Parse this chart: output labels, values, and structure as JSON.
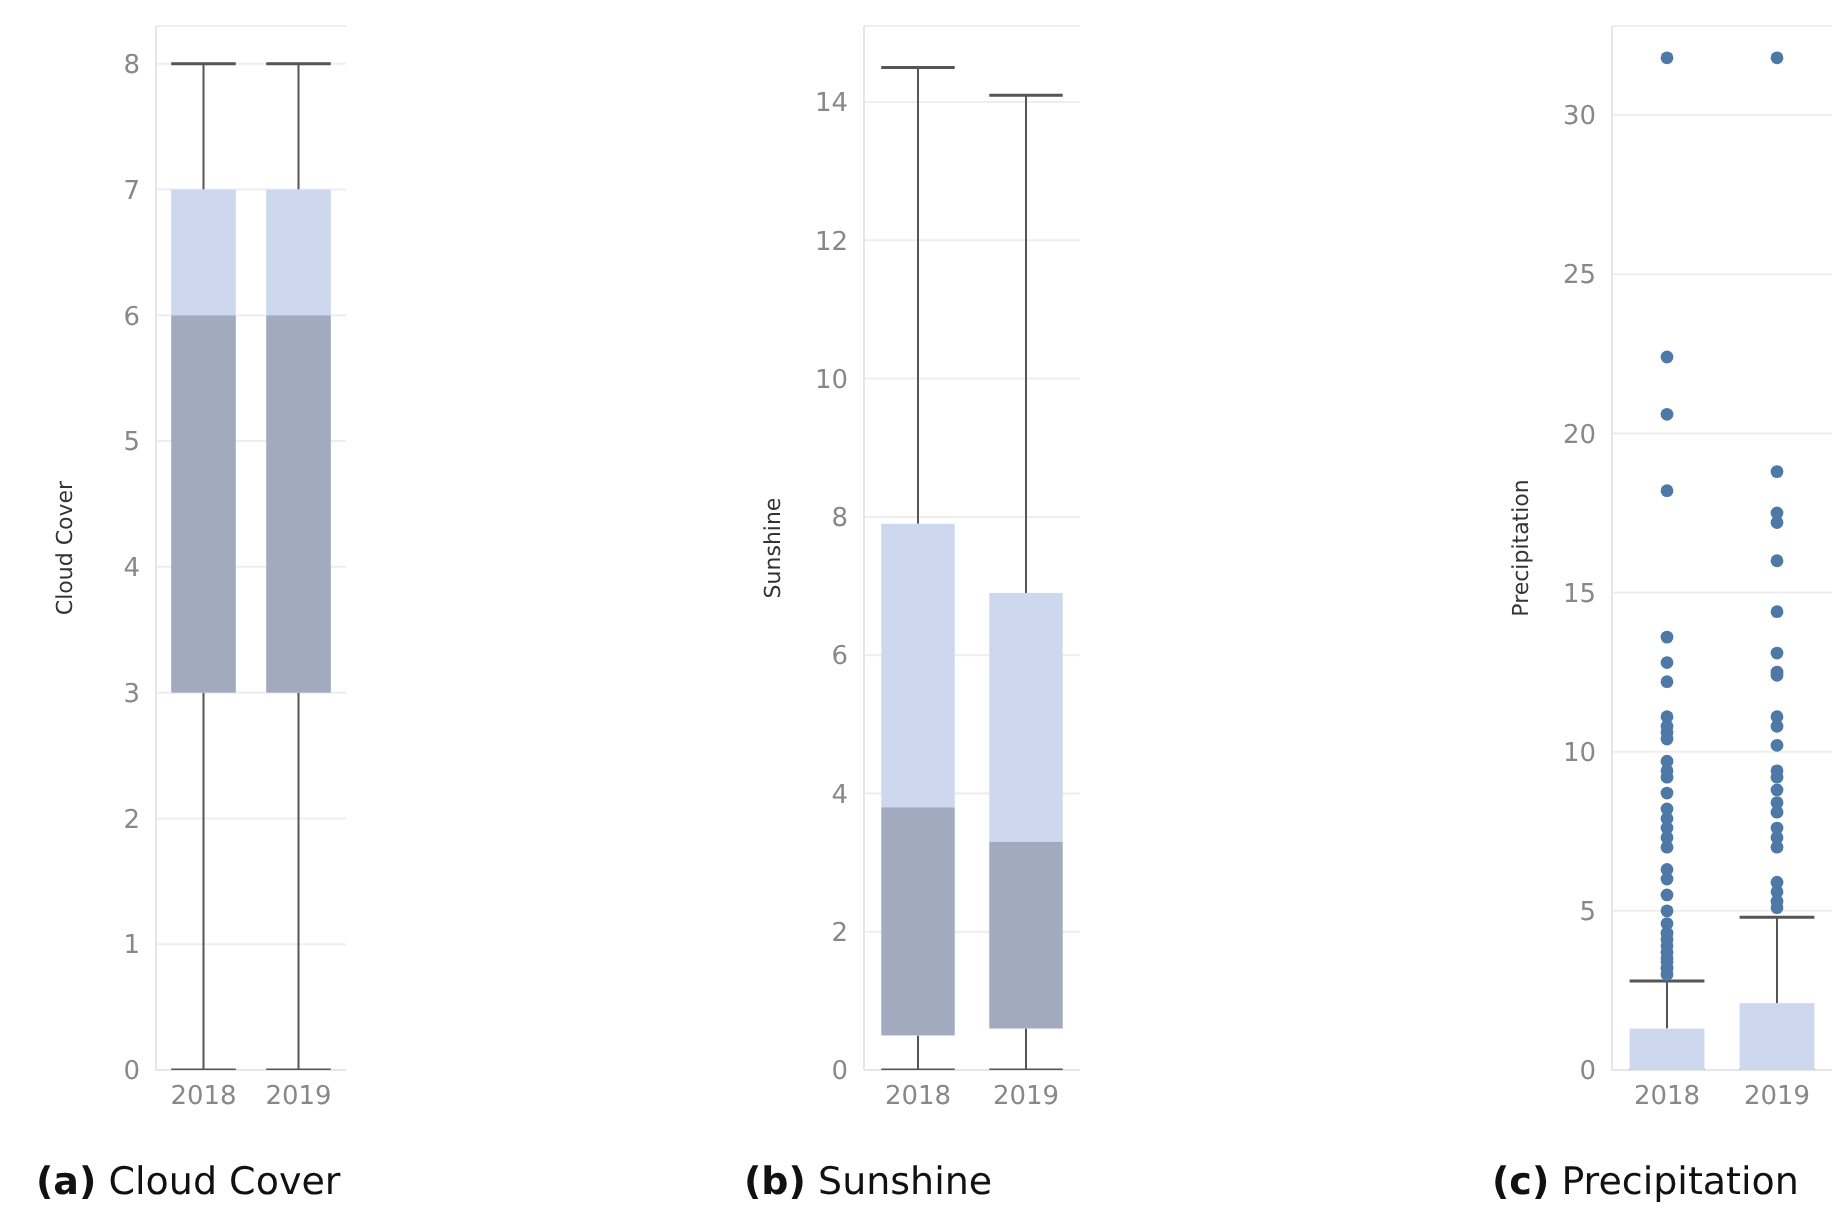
{
  "chart_data": [
    {
      "type": "box",
      "title": "(a) Cloud Cover",
      "ylabel": "Cloud Cover",
      "categories": [
        "2018",
        "2019"
      ],
      "ylim": [
        0,
        8.3
      ],
      "yticks": [
        0,
        1,
        2,
        3,
        4,
        5,
        6,
        7,
        8
      ],
      "grid": "y",
      "boxes": [
        {
          "low": 0,
          "q1": 3,
          "median": 6,
          "q3": 7,
          "high": 8
        },
        {
          "low": 0,
          "q1": 3,
          "median": 6,
          "q3": 7,
          "high": 8
        }
      ]
    },
    {
      "type": "box",
      "title": "(b) Sunshine",
      "ylabel": "Sunshine",
      "categories": [
        "2018",
        "2019"
      ],
      "ylim": [
        0,
        15.1
      ],
      "yticks": [
        0,
        2,
        4,
        6,
        8,
        10,
        12,
        14
      ],
      "grid": "y",
      "boxes": [
        {
          "low": 0,
          "q1": 0.5,
          "median": 3.8,
          "q3": 7.9,
          "high": 14.5
        },
        {
          "low": 0,
          "q1": 0.6,
          "median": 3.3,
          "q3": 6.9,
          "high": 14.1
        }
      ]
    },
    {
      "type": "box",
      "title": "(c) Precipitation",
      "ylabel": "Precipitation",
      "categories": [
        "2018",
        "2019"
      ],
      "ylim": [
        0,
        32.8
      ],
      "yticks": [
        0,
        5,
        10,
        15,
        20,
        25,
        30
      ],
      "grid": "y",
      "boxes": [
        {
          "low": 0,
          "q1": 0,
          "median": 0,
          "q3": 1.3,
          "high": 2.8,
          "outliers": [
            3.0,
            3.2,
            3.4,
            3.5,
            3.7,
            3.9,
            4.1,
            4.3,
            4.6,
            5.0,
            5.5,
            6.0,
            6.3,
            7.0,
            7.3,
            7.6,
            7.9,
            8.2,
            8.7,
            9.2,
            9.4,
            9.7,
            10.4,
            10.6,
            10.8,
            11.1,
            12.2,
            12.8,
            13.6,
            18.2,
            20.6,
            22.4,
            31.8
          ]
        },
        {
          "low": 0,
          "q1": 0,
          "median": 0,
          "q3": 2.1,
          "high": 4.8,
          "outliers": [
            5.1,
            5.3,
            5.6,
            5.9,
            7.0,
            7.3,
            7.6,
            8.1,
            8.4,
            8.8,
            9.2,
            9.4,
            10.2,
            10.8,
            11.1,
            12.4,
            12.5,
            13.1,
            14.4,
            16.0,
            17.2,
            17.5,
            18.8,
            31.8
          ]
        }
      ]
    }
  ]
}
